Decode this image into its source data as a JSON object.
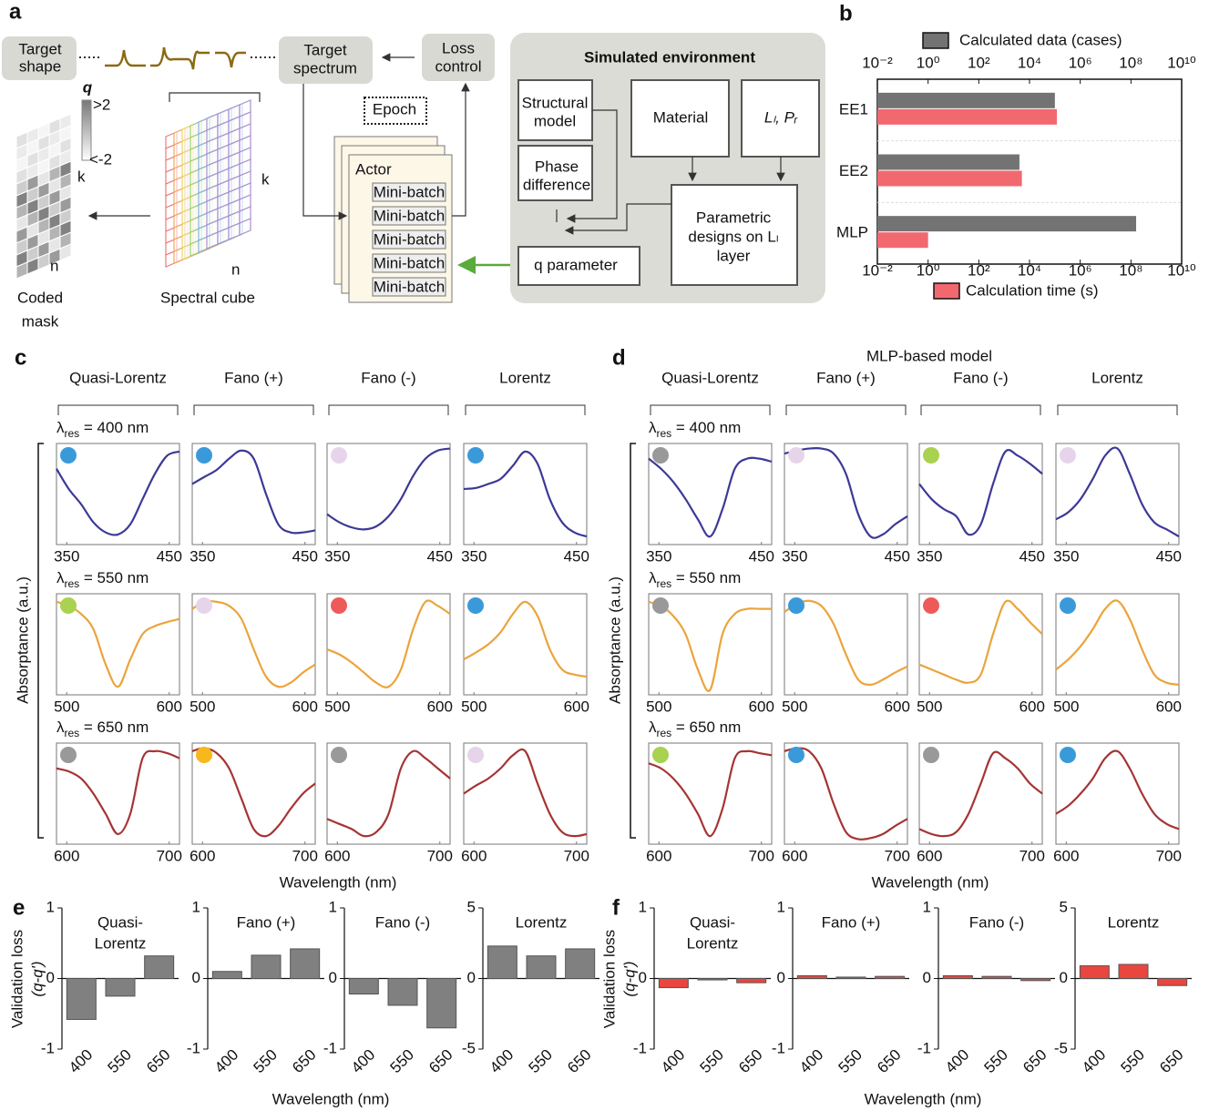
{
  "panel_labels": [
    "a",
    "b",
    "c",
    "d",
    "e",
    "f"
  ],
  "diagram": {
    "target_shape": [
      "Target",
      "shape"
    ],
    "target_spectrum": [
      "Target",
      "spectrum"
    ],
    "loss_control": [
      "Loss",
      "control"
    ],
    "colorbar": {
      "symbol": "q",
      "max": ">2",
      "min": "<-2"
    },
    "mask_axes": {
      "k": "k",
      "n": "n"
    },
    "cube_axes": {
      "k": "k",
      "n": "n"
    },
    "coded_mask": [
      "Coded",
      "mask"
    ],
    "spectral_cube": "Spectral cube",
    "epoch": "Epoch",
    "actor": "Actor",
    "mini_batches": [
      "Mini-batch",
      "Mini-batch",
      "Mini-batch",
      "Mini-batch",
      "Mini-batch"
    ],
    "environment": {
      "title": "Simulated environment",
      "structural_model": [
        "Structural",
        "model"
      ],
      "phase_difference": [
        "Phase",
        "difference"
      ],
      "material": "Material",
      "layer_params": "Lₗ, Pᵣ",
      "parametric_designs": [
        "Parametric",
        "designs on Lₗ",
        "layer"
      ],
      "q_parameter": "q parameter"
    }
  },
  "chart_data": [
    {
      "type": "bar",
      "orientation": "horizontal",
      "xscale": "log",
      "categories": [
        "EE1",
        "EE2",
        "MLP"
      ],
      "series": [
        {
          "name": "Calculated data (cases)",
          "color": "#737373",
          "values": [
            100000,
            4000,
            160000000
          ]
        },
        {
          "name": "Calculation time (s)",
          "color": "#f2686f",
          "values": [
            120000,
            5000,
            1
          ]
        }
      ],
      "xlim": [
        0.01,
        10000000000
      ],
      "xticks": [
        {
          "value": 0.01,
          "label": "10⁻²"
        },
        {
          "value": 1,
          "label": "10⁰"
        },
        {
          "value": 100,
          "label": "10²"
        },
        {
          "value": 10000,
          "label": "10⁴"
        },
        {
          "value": 1000000,
          "label": "10⁶"
        },
        {
          "value": 100000000,
          "label": "10⁸"
        },
        {
          "value": 10000000000,
          "label": "10¹⁰"
        }
      ]
    },
    {
      "type": "line",
      "columns": [
        "Quasi-Lorentz",
        "Fano (+)",
        "Fano (-)",
        "Lorentz"
      ],
      "ylabel": "Absorptance (a.u.)",
      "xlabel": "Wavelength (nm)",
      "ylim": [
        0,
        1
      ],
      "rows": [
        {
          "resonance": {
            "symbol": "λ",
            "sub": "res",
            "text": " = 400 nm"
          },
          "color": "#3c3996",
          "x": [
            340,
            352,
            364,
            376,
            388,
            400,
            412,
            424,
            436,
            448,
            460
          ],
          "xlim": [
            340,
            460
          ],
          "xticks": [
            350,
            450
          ],
          "series": [
            {
              "marker_color": "#3a9ad9",
              "values": [
                0.75,
                0.55,
                0.4,
                0.22,
                0.12,
                0.1,
                0.2,
                0.45,
                0.7,
                0.88,
                0.92
              ]
            },
            {
              "marker_color": "#3a9ad9",
              "values": [
                0.6,
                0.67,
                0.74,
                0.85,
                0.93,
                0.85,
                0.5,
                0.2,
                0.12,
                0.12,
                0.14
              ]
            },
            {
              "marker_color": "#e6d5ea",
              "values": [
                0.3,
                0.22,
                0.17,
                0.15,
                0.18,
                0.28,
                0.45,
                0.68,
                0.85,
                0.93,
                0.95
              ]
            },
            {
              "marker_color": "#3a9ad9",
              "values": [
                0.55,
                0.56,
                0.6,
                0.65,
                0.78,
                0.92,
                0.8,
                0.45,
                0.22,
                0.12,
                0.08
              ]
            }
          ]
        },
        {
          "resonance": {
            "symbol": "λ",
            "sub": "res",
            "text": " = 550 nm"
          },
          "color": "#eba43c",
          "x": [
            490,
            502,
            514,
            526,
            538,
            550,
            562,
            574,
            586,
            598,
            610
          ],
          "xlim": [
            490,
            610
          ],
          "xticks": [
            500,
            600
          ],
          "series": [
            {
              "marker_color": "#a8d24f",
              "values": [
                0.92,
                0.88,
                0.8,
                0.65,
                0.3,
                0.08,
                0.35,
                0.6,
                0.68,
                0.72,
                0.75
              ]
            },
            {
              "marker_color": "#e6d5ea",
              "values": [
                0.85,
                0.92,
                0.92,
                0.88,
                0.75,
                0.45,
                0.18,
                0.08,
                0.12,
                0.22,
                0.3
              ]
            },
            {
              "marker_color": "#ee5a5a",
              "values": [
                0.45,
                0.4,
                0.32,
                0.22,
                0.12,
                0.08,
                0.25,
                0.65,
                0.92,
                0.88,
                0.8
              ]
            },
            {
              "marker_color": "#3a9ad9",
              "values": [
                0.35,
                0.42,
                0.5,
                0.62,
                0.8,
                0.92,
                0.78,
                0.45,
                0.25,
                0.2,
                0.18
              ]
            }
          ]
        },
        {
          "resonance": {
            "symbol": "λ",
            "sub": "res",
            "text": " = 650 nm"
          },
          "color": "#a53434",
          "x": [
            590,
            602,
            614,
            626,
            638,
            650,
            662,
            674,
            686,
            698,
            710
          ],
          "xlim": [
            590,
            710
          ],
          "xticks": [
            600,
            700
          ],
          "series": [
            {
              "marker_color": "#999999",
              "values": [
                0.75,
                0.72,
                0.65,
                0.5,
                0.3,
                0.1,
                0.3,
                0.85,
                0.92,
                0.9,
                0.85
              ]
            },
            {
              "marker_color": "#f7b81c",
              "values": [
                0.92,
                0.95,
                0.9,
                0.75,
                0.45,
                0.15,
                0.08,
                0.18,
                0.35,
                0.5,
                0.6
              ]
            },
            {
              "marker_color": "#999999",
              "values": [
                0.25,
                0.2,
                0.15,
                0.08,
                0.12,
                0.3,
                0.75,
                0.92,
                0.85,
                0.75,
                0.65
              ]
            },
            {
              "marker_color": "#e6d5ea",
              "values": [
                0.5,
                0.58,
                0.65,
                0.75,
                0.88,
                0.92,
                0.6,
                0.3,
                0.12,
                0.08,
                0.1
              ]
            }
          ]
        }
      ]
    },
    {
      "type": "line",
      "title": "MLP-based model",
      "columns": [
        "Quasi-Lorentz",
        "Fano (+)",
        "Fano (-)",
        "Lorentz"
      ],
      "ylabel": "Absorptance (a.u.)",
      "xlabel": "Wavelength (nm)",
      "ylim": [
        0,
        1
      ],
      "rows": [
        {
          "resonance": {
            "symbol": "λ",
            "sub": "res",
            "text": " = 400 nm"
          },
          "color": "#3c3996",
          "x": [
            340,
            352,
            364,
            376,
            388,
            400,
            412,
            424,
            436,
            448,
            460
          ],
          "xlim": [
            340,
            460
          ],
          "xticks": [
            350,
            450
          ],
          "series": [
            {
              "marker_color": "#999999",
              "values": [
                0.85,
                0.75,
                0.62,
                0.45,
                0.25,
                0.08,
                0.35,
                0.75,
                0.85,
                0.85,
                0.82
              ]
            },
            {
              "marker_color": "#e6d5ea",
              "values": [
                0.9,
                0.93,
                0.95,
                0.95,
                0.9,
                0.7,
                0.3,
                0.08,
                0.1,
                0.2,
                0.28
              ]
            },
            {
              "marker_color": "#a8d24f",
              "values": [
                0.6,
                0.45,
                0.35,
                0.28,
                0.1,
                0.2,
                0.6,
                0.92,
                0.88,
                0.8,
                0.7
              ]
            },
            {
              "marker_color": "#e6d5ea",
              "values": [
                0.25,
                0.32,
                0.45,
                0.65,
                0.88,
                0.95,
                0.7,
                0.4,
                0.22,
                0.15,
                0.08
              ]
            }
          ]
        },
        {
          "resonance": {
            "symbol": "λ",
            "sub": "res",
            "text": " = 550 nm"
          },
          "color": "#eba43c",
          "x": [
            490,
            502,
            514,
            526,
            538,
            550,
            562,
            574,
            586,
            598,
            610
          ],
          "xlim": [
            490,
            610
          ],
          "xticks": [
            500,
            600
          ],
          "series": [
            {
              "marker_color": "#999999",
              "values": [
                0.92,
                0.88,
                0.78,
                0.6,
                0.25,
                0.05,
                0.6,
                0.8,
                0.85,
                0.85,
                0.85
              ]
            },
            {
              "marker_color": "#3a9ad9",
              "values": [
                0.82,
                0.9,
                0.93,
                0.88,
                0.7,
                0.4,
                0.15,
                0.1,
                0.15,
                0.22,
                0.28
              ]
            },
            {
              "marker_color": "#ee5a5a",
              "values": [
                0.3,
                0.25,
                0.2,
                0.15,
                0.12,
                0.2,
                0.6,
                0.92,
                0.85,
                0.72,
                0.6
              ]
            },
            {
              "marker_color": "#3a9ad9",
              "values": [
                0.25,
                0.35,
                0.48,
                0.65,
                0.85,
                0.93,
                0.75,
                0.45,
                0.2,
                0.12,
                0.1
              ]
            }
          ]
        },
        {
          "resonance": {
            "symbol": "λ",
            "sub": "res",
            "text": " = 650 nm"
          },
          "color": "#a53434",
          "x": [
            590,
            602,
            614,
            626,
            638,
            650,
            662,
            674,
            686,
            698,
            710
          ],
          "xlim": [
            590,
            710
          ],
          "xticks": [
            600,
            700
          ],
          "series": [
            {
              "marker_color": "#a8d24f",
              "values": [
                0.8,
                0.75,
                0.65,
                0.5,
                0.3,
                0.08,
                0.35,
                0.85,
                0.92,
                0.9,
                0.88
              ]
            },
            {
              "marker_color": "#3a9ad9",
              "values": [
                0.92,
                0.95,
                0.92,
                0.75,
                0.4,
                0.12,
                0.05,
                0.06,
                0.1,
                0.18,
                0.25
              ]
            },
            {
              "marker_color": "#999999",
              "values": [
                0.15,
                0.1,
                0.08,
                0.12,
                0.3,
                0.6,
                0.9,
                0.85,
                0.75,
                0.6,
                0.5
              ]
            },
            {
              "marker_color": "#3a9ad9",
              "values": [
                0.3,
                0.38,
                0.5,
                0.65,
                0.85,
                0.92,
                0.75,
                0.5,
                0.3,
                0.2,
                0.15
              ]
            }
          ]
        }
      ]
    },
    {
      "type": "bar",
      "xlabel": "Wavelength (nm)",
      "ylabel": [
        "Validation loss",
        "(q-q')"
      ],
      "color": "#808080",
      "subplots": [
        {
          "title": [
            "Quasi-",
            "Lorentz"
          ],
          "categories": [
            "400",
            "550",
            "650"
          ],
          "values": [
            -0.58,
            -0.25,
            0.32
          ],
          "ylim": [
            -1,
            1
          ],
          "yticks": [
            -1,
            0,
            1
          ]
        },
        {
          "title": [
            "Fano (+)"
          ],
          "categories": [
            "400",
            "550",
            "650"
          ],
          "values": [
            0.1,
            0.33,
            0.42
          ],
          "ylim": [
            -1,
            1
          ],
          "yticks": [
            -1,
            0,
            1
          ]
        },
        {
          "title": [
            "Fano (-)"
          ],
          "categories": [
            "400",
            "550",
            "650"
          ],
          "values": [
            -0.22,
            -0.38,
            -0.7
          ],
          "ylim": [
            -1,
            1
          ],
          "yticks": [
            -1,
            0,
            1
          ]
        },
        {
          "title": [
            "Lorentz"
          ],
          "categories": [
            "400",
            "550",
            "650"
          ],
          "values": [
            2.3,
            1.6,
            2.1
          ],
          "ylim": [
            -5,
            5
          ],
          "yticks": [
            -5,
            0,
            5
          ]
        }
      ]
    },
    {
      "type": "bar",
      "xlabel": "Wavelength (nm)",
      "ylabel": [
        "Validation loss",
        "(q-q')"
      ],
      "color": "#e8463f",
      "subplots": [
        {
          "title": [
            "Quasi-",
            "Lorentz"
          ],
          "categories": [
            "400",
            "550",
            "650"
          ],
          "values": [
            -0.13,
            -0.02,
            -0.06
          ],
          "ylim": [
            -1,
            1
          ],
          "yticks": [
            -1,
            0,
            1
          ]
        },
        {
          "title": [
            "Fano (+)"
          ],
          "categories": [
            "400",
            "550",
            "650"
          ],
          "values": [
            0.04,
            0.02,
            0.03
          ],
          "ylim": [
            -1,
            1
          ],
          "yticks": [
            -1,
            0,
            1
          ]
        },
        {
          "title": [
            "Fano (-)"
          ],
          "categories": [
            "400",
            "550",
            "650"
          ],
          "values": [
            0.04,
            0.03,
            -0.03
          ],
          "ylim": [
            -1,
            1
          ],
          "yticks": [
            -1,
            0,
            1
          ]
        },
        {
          "title": [
            "Lorentz"
          ],
          "categories": [
            "400",
            "550",
            "650"
          ],
          "values": [
            0.9,
            1.0,
            -0.5
          ],
          "ylim": [
            -5,
            5
          ],
          "yticks": [
            -5,
            0,
            5
          ]
        }
      ]
    }
  ]
}
